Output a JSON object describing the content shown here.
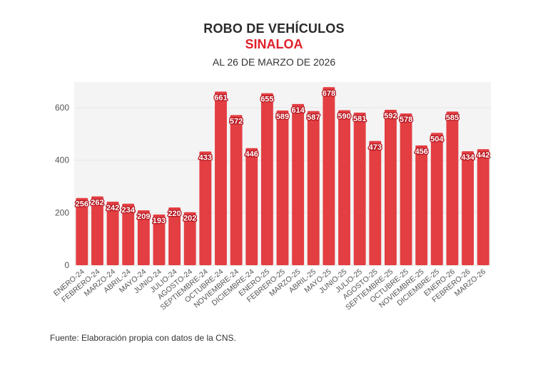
{
  "header": {
    "title": "ROBO DE VEHÍCULOS",
    "subtitle": "SINALOA",
    "date": "AL 26 DE MARZO DE 2026"
  },
  "footer": {
    "source": "Fuente: Elaboración propia con datos de la CNS."
  },
  "colors": {
    "bar": "#e33e42",
    "subtitle": "#e0202a",
    "plot_background": "#f4f4f4",
    "gridline": "#e6e6e6",
    "label_outline": "#b3121c"
  },
  "chart_data": {
    "type": "bar",
    "title": "ROBO DE VEHÍCULOS",
    "subtitle": "SINALOA",
    "xlabel": "",
    "ylabel": "",
    "ylim": [
      0,
      700
    ],
    "yticks": [
      0,
      200,
      400,
      600
    ],
    "grid": true,
    "legend": "none",
    "categories": [
      "ENERO-24",
      "FEBRERO-24",
      "MARZO-24",
      "ABRIL-24",
      "MAYO-24",
      "JUNIO-24",
      "JULIO-24",
      "AGOSTO-24",
      "SEPTIEMBRE-24",
      "OCTUBRE-24",
      "NOVIEMBRE-24",
      "DICIEMBRE-24",
      "ENERO-25",
      "FEBRERO-25",
      "MARZO-25",
      "ABRIL-25",
      "MAYO-25",
      "JUNIO-25",
      "JULIO-25",
      "AGOSTO-25",
      "SEPTIEMBRE-25",
      "OCTUBRE-25",
      "NOVIEMBRE-25",
      "DICIEMBRE-25",
      "ENERO-26",
      "FEBRERO-26",
      "MARZO-26"
    ],
    "values": [
      256,
      262,
      242,
      234,
      209,
      193,
      220,
      202,
      433,
      661,
      572,
      446,
      655,
      589,
      614,
      587,
      678,
      590,
      581,
      473,
      592,
      578,
      456,
      504,
      585,
      434,
      442
    ]
  }
}
